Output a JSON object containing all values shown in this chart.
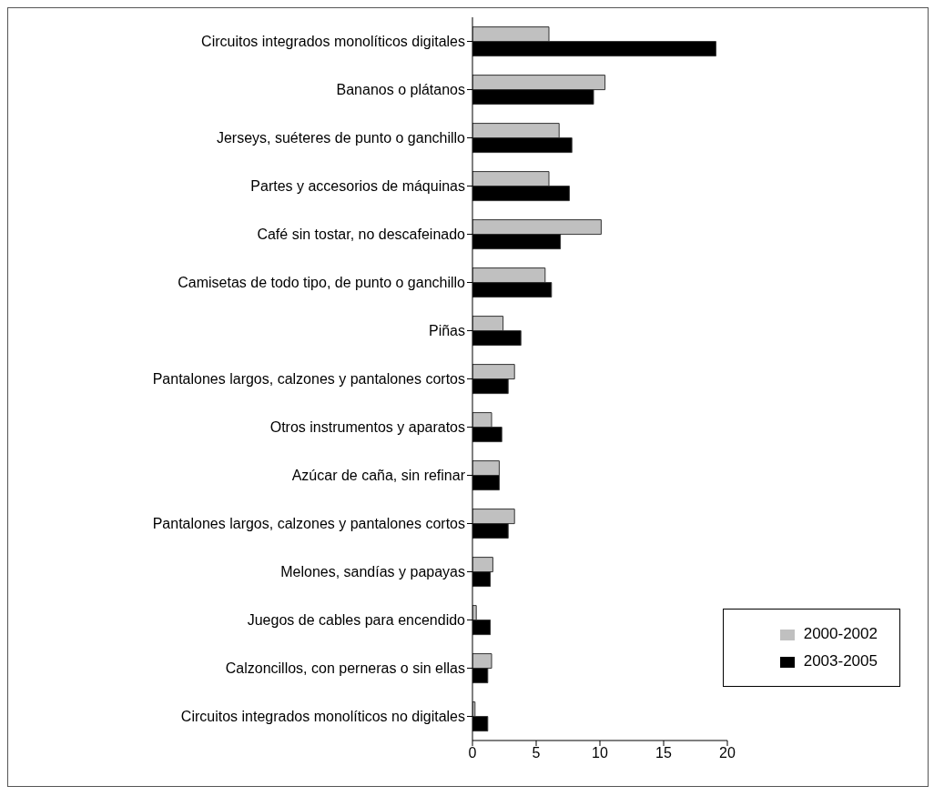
{
  "chart_data": {
    "type": "bar",
    "orientation": "horizontal",
    "categories": [
      "Circuitos integrados monolíticos digitales",
      "Bananos o plátanos",
      "Jerseys, suéteres de punto o ganchillo",
      "Partes y accesorios de máquinas",
      "Café sin tostar, no descafeinado",
      "Camisetas de todo tipo, de punto o ganchillo",
      "Piñas",
      "Pantalones largos, calzones y pantalones cortos",
      "Otros instrumentos y aparatos",
      "Azúcar de caña, sin refinar",
      "Pantalones largos, calzones y pantalones cortos",
      "Melones, sandías y papayas",
      "Juegos de cables para encendido",
      "Calzoncillos, con perneras o sin ellas",
      "Circuitos integrados monolíticos no digitales"
    ],
    "series": [
      {
        "name": "2000-2002",
        "color": "#c0c0c0",
        "values": [
          6.0,
          10.4,
          6.8,
          6.0,
          10.1,
          5.7,
          2.4,
          3.3,
          1.5,
          2.1,
          3.3,
          1.6,
          0.3,
          1.5,
          0.2
        ]
      },
      {
        "name": "2003-2005",
        "color": "#000000",
        "values": [
          19.1,
          9.5,
          7.8,
          7.6,
          6.9,
          6.2,
          3.8,
          2.8,
          2.3,
          2.1,
          2.8,
          1.4,
          1.4,
          1.2,
          1.2
        ]
      }
    ],
    "xlim": [
      0,
      20
    ],
    "xticks": [
      0,
      5,
      10,
      15,
      20
    ],
    "grid": false,
    "legend": "bottom right"
  }
}
